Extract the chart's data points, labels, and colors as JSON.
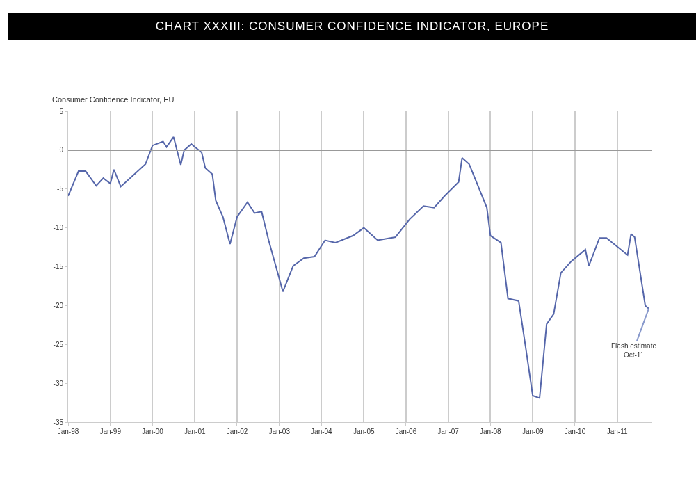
{
  "chart_data": {
    "type": "line",
    "title": "CHART XXXIII: CONSUMER CONFIDENCE INDICATOR, EUROPE",
    "ylabel": "Consumer Confidence Indicator, EU",
    "x": [
      "1998-01",
      "1998-04",
      "1998-06",
      "1998-09",
      "1998-11",
      "1999-01",
      "1999-02",
      "1999-04",
      "1999-11",
      "2000-01",
      "2000-04",
      "2000-05",
      "2000-07",
      "2000-09",
      "2000-10",
      "2000-12",
      "2001-03",
      "2001-04",
      "2001-06",
      "2001-07",
      "2001-09",
      "2001-11",
      "2002-01",
      "2002-04",
      "2002-06",
      "2002-08",
      "2002-10",
      "2003-02",
      "2003-05",
      "2003-08",
      "2003-11",
      "2004-02",
      "2004-05",
      "2004-10",
      "2005-01",
      "2005-05",
      "2005-10",
      "2006-02",
      "2006-06",
      "2006-09",
      "2006-12",
      "2007-04",
      "2007-05",
      "2007-07",
      "2007-12",
      "2008-01",
      "2008-04",
      "2008-06",
      "2008-09",
      "2008-11",
      "2009-01",
      "2009-03",
      "2009-05",
      "2009-07",
      "2009-09",
      "2009-12",
      "2010-04",
      "2010-05",
      "2010-08",
      "2010-10",
      "2011-04",
      "2011-05",
      "2011-06",
      "2011-09",
      "2011-10"
    ],
    "series": [
      {
        "color": "#5566aa",
        "values": [
          -5.9,
          -2.7,
          -2.7,
          -4.6,
          -3.6,
          -4.3,
          -2.5,
          -4.7,
          -1.8,
          0.6,
          1.1,
          0.4,
          1.7,
          -1.9,
          0,
          0.8,
          -0.3,
          -2.3,
          -3.1,
          -6.5,
          -8.6,
          -12.1,
          -8.6,
          -6.7,
          -8.1,
          -7.9,
          -11.6,
          -18.2,
          -14.9,
          -13.9,
          -13.7,
          -11.6,
          -11.9,
          -11.0,
          -10.0,
          -11.6,
          -11.2,
          -8.9,
          -7.2,
          -7.4,
          -5.9,
          -4.1,
          -1.0,
          -1.8,
          -7.4,
          -11.0,
          -11.9,
          -19.1,
          -19.4,
          -25.4,
          -31.6,
          -31.9,
          -22.4,
          -21.1,
          -15.8,
          -14.3,
          -12.8,
          -14.9,
          -11.3,
          -11.3,
          -13.5,
          -10.8,
          -11.2,
          -20.0,
          -20.4
        ]
      }
    ],
    "annotations": [
      {
        "text": "Flash estimate Oct-11",
        "x": "2011-10",
        "y": -20.4
      }
    ],
    "xlim": [
      "1998-01",
      "2011-10-25"
    ],
    "xticks": [
      {
        "value": "1998-01",
        "label": "Jan-98"
      },
      {
        "value": "1999-01",
        "label": "Jan-99"
      },
      {
        "value": "2000-01",
        "label": "Jan-00"
      },
      {
        "value": "2001-01",
        "label": "Jan-01"
      },
      {
        "value": "2002-01",
        "label": "Jan-02"
      },
      {
        "value": "2003-01",
        "label": "Jan-03"
      },
      {
        "value": "2004-01",
        "label": "Jan-04"
      },
      {
        "value": "2005-01",
        "label": "Jan-05"
      },
      {
        "value": "2006-01",
        "label": "Jan-06"
      },
      {
        "value": "2007-01",
        "label": "Jan-07"
      },
      {
        "value": "2008-01",
        "label": "Jan-08"
      },
      {
        "value": "2009-01",
        "label": "Jan-09"
      },
      {
        "value": "2010-01",
        "label": "Jan-10"
      },
      {
        "value": "2011-01",
        "label": "Jan-11"
      }
    ],
    "ylim": [
      -35,
      5
    ],
    "yticks": [
      5,
      0,
      -5,
      -10,
      -15,
      -20,
      -25,
      -30,
      -35
    ],
    "ref_lines": [
      {
        "axis": "y",
        "value": 0,
        "color": "#999999"
      }
    ],
    "grid": "x",
    "marker": "none",
    "line_style": "solid"
  }
}
